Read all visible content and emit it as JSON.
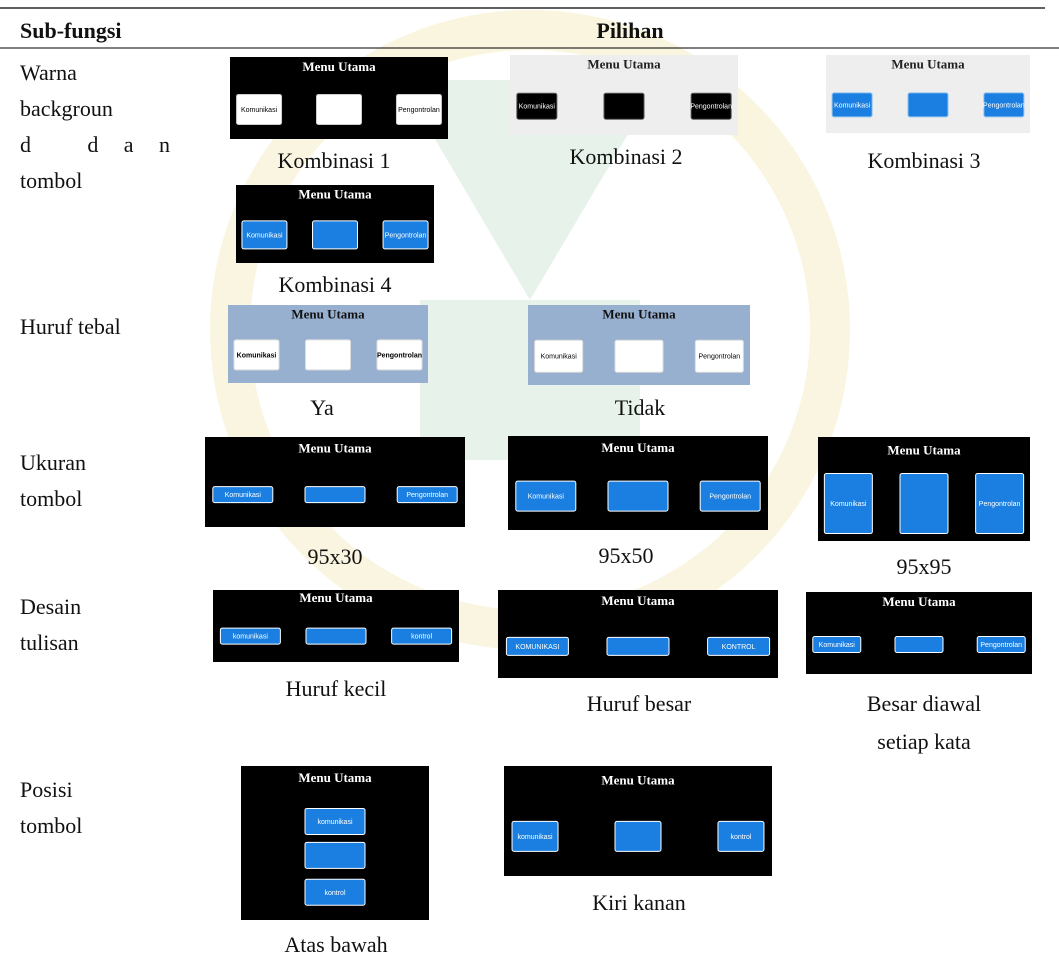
{
  "header": {
    "columns": [
      "Sub-fungsi",
      "Pilihan"
    ]
  },
  "rows": [
    {
      "label_lines": [
        "Warna",
        "backgroun",
        "d dan",
        "tombol"
      ],
      "options": [
        {
          "caption_lines": [
            "Kombinasi 1"
          ],
          "screen": {
            "title": "Menu Utama",
            "buttons": [
              "Komunikasi",
              "Pengontrolan"
            ],
            "background": "#000000",
            "title_color": "#ffffff",
            "button_fill": "#ffffff",
            "button_text": "#000000",
            "button_border": "#cccccc"
          }
        },
        {
          "caption_lines": [
            "Kombinasi 2"
          ],
          "screen": {
            "title": "Menu Utama",
            "buttons": [
              "Komunikasi",
              "Pengontrolan"
            ],
            "background": "#eeeeee",
            "title_color": "#222222",
            "button_fill": "#000000",
            "button_text": "#ffffff",
            "button_border": "#555555"
          }
        },
        {
          "caption_lines": [
            "Kombinasi 3"
          ],
          "screen": {
            "title": "Menu Utama",
            "buttons": [
              "Komunikasi",
              "Pengontrolan"
            ],
            "background": "#eeeeee",
            "title_color": "#222222",
            "button_fill": "#1a7fe0",
            "button_text": "#ffffff",
            "button_border": "#8fc2f0"
          }
        },
        {
          "caption_lines": [
            "Kombinasi 4"
          ],
          "screen": {
            "title": "Menu Utama",
            "buttons": [
              "Komunikasi",
              "Pengontrolan"
            ],
            "background": "#000000",
            "title_color": "#ffffff",
            "button_fill": "#1a7fe0",
            "button_text": "#ffffff",
            "button_border": "#ffffff"
          }
        }
      ]
    },
    {
      "label_lines": [
        "Huruf tebal"
      ],
      "options": [
        {
          "caption_lines": [
            "Ya"
          ],
          "screen": {
            "title": "Menu Utama",
            "buttons": [
              "Komunikasi",
              "Pengontrolan"
            ],
            "background": "#98b0cf",
            "title_color": "#111111",
            "button_fill": "#ffffff",
            "button_text": "#000000",
            "button_border": "#dddddd",
            "bold": true
          }
        },
        {
          "caption_lines": [
            "Tidak"
          ],
          "screen": {
            "title": "Menu Utama",
            "buttons": [
              "Komunikasi",
              "Pengontrolan"
            ],
            "background": "#98b0cf",
            "title_color": "#111111",
            "button_fill": "#ffffff",
            "button_text": "#000000",
            "button_border": "#dddddd"
          }
        }
      ]
    },
    {
      "label_lines": [
        "Ukuran",
        "tombol"
      ],
      "options": [
        {
          "caption_lines": [
            "95x30"
          ],
          "screen": {
            "title": "Menu Utama",
            "buttons": [
              "Komunikasi",
              "Pengontrolan"
            ],
            "background": "#000000",
            "title_color": "#ffffff",
            "button_fill": "#1a7fe0",
            "button_text": "#ffffff",
            "button_border": "#ffffff"
          }
        },
        {
          "caption_lines": [
            "95x50"
          ],
          "screen": {
            "title": "Menu Utama",
            "buttons": [
              "Komunikasi",
              "Pengontrolan"
            ],
            "background": "#000000",
            "title_color": "#ffffff",
            "button_fill": "#1a7fe0",
            "button_text": "#ffffff",
            "button_border": "#ffffff"
          }
        },
        {
          "caption_lines": [
            "95x95"
          ],
          "screen": {
            "title": "Menu Utama",
            "buttons": [
              "Komunikasi",
              "Pengontrolan"
            ],
            "background": "#000000",
            "title_color": "#ffffff",
            "button_fill": "#1a7fe0",
            "button_text": "#ffffff",
            "button_border": "#ffffff"
          }
        }
      ]
    },
    {
      "label_lines": [
        "Desain",
        "tulisan"
      ],
      "options": [
        {
          "caption_lines": [
            "Huruf kecil"
          ],
          "screen": {
            "title": "Menu Utama",
            "buttons": [
              "komunikasi",
              "kontrol"
            ],
            "background": "#000000",
            "title_color": "#ffffff",
            "button_fill": "#1a7fe0",
            "button_text": "#ffffff",
            "button_border": "#ffffff"
          }
        },
        {
          "caption_lines": [
            "Huruf besar"
          ],
          "screen": {
            "title": "Menu Utama",
            "buttons": [
              "KOMUNIKASI",
              "KONTROL"
            ],
            "background": "#000000",
            "title_color": "#ffffff",
            "button_fill": "#1a7fe0",
            "button_text": "#ffffff",
            "button_border": "#ffffff"
          }
        },
        {
          "caption_lines": [
            "Besar diawal",
            "setiap kata"
          ],
          "screen": {
            "title": "Menu Utama",
            "buttons": [
              "Komunikasi",
              "Pengontrolan"
            ],
            "background": "#000000",
            "title_color": "#ffffff",
            "button_fill": "#1a7fe0",
            "button_text": "#ffffff",
            "button_border": "#ffffff"
          }
        }
      ]
    },
    {
      "label_lines": [
        "Posisi",
        "tombol"
      ],
      "options": [
        {
          "caption_lines": [
            "Atas bawah"
          ],
          "screen": {
            "title": "Menu Utama",
            "buttons": [
              "komunikasi",
              "kontrol"
            ],
            "background": "#000000",
            "title_color": "#ffffff",
            "button_fill": "#1a7fe0",
            "button_text": "#ffffff",
            "button_border": "#ffffff"
          }
        },
        {
          "caption_lines": [
            "Kiri kanan"
          ],
          "screen": {
            "title": "Menu Utama",
            "buttons": [
              "komunikasi",
              "kontrol"
            ],
            "background": "#000000",
            "title_color": "#ffffff",
            "button_fill": "#1a7fe0",
            "button_text": "#ffffff",
            "button_border": "#ffffff"
          }
        }
      ]
    }
  ]
}
